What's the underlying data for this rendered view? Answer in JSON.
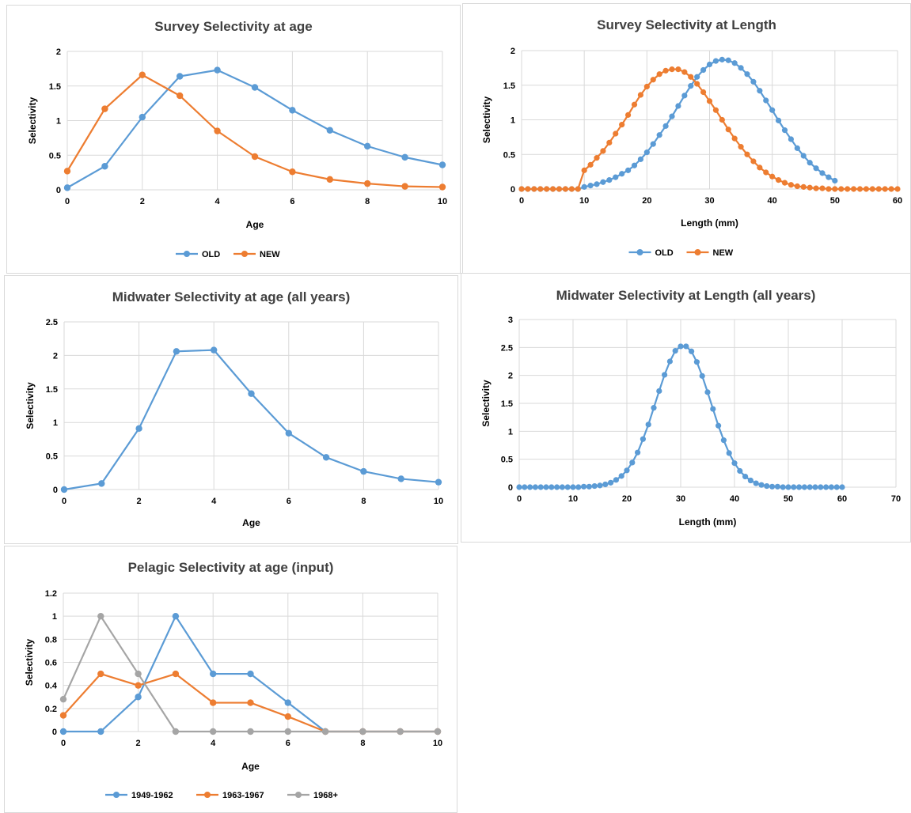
{
  "chart_data": [
    {
      "id": "survey-age",
      "type": "line",
      "title": "Survey Selectivity at age",
      "xlabel": "Age",
      "ylabel": "Selectivity",
      "xlim": [
        0,
        10
      ],
      "ylim": [
        0,
        2
      ],
      "xticks": [
        0,
        2,
        4,
        6,
        8,
        10
      ],
      "yticks": [
        0,
        0.5,
        1,
        1.5,
        2
      ],
      "x": [
        0,
        1,
        2,
        3,
        4,
        5,
        6,
        7,
        8,
        9,
        10
      ],
      "legend": "bottom",
      "series": [
        {
          "name": "OLD",
          "color": "#5B9BD5",
          "values": [
            0.03,
            0.34,
            1.05,
            1.64,
            1.73,
            1.48,
            1.15,
            0.86,
            0.63,
            0.47,
            0.36
          ]
        },
        {
          "name": "NEW",
          "color": "#ED7D31",
          "values": [
            0.27,
            1.17,
            1.66,
            1.36,
            0.85,
            0.48,
            0.26,
            0.15,
            0.09,
            0.05,
            0.04
          ]
        }
      ]
    },
    {
      "id": "survey-length",
      "type": "line",
      "title": "Survey Selectivity at Length",
      "xlabel": "Length (mm)",
      "ylabel": "Selectivity",
      "xlim": [
        0,
        60
      ],
      "ylim": [
        0,
        2
      ],
      "xticks": [
        0,
        10,
        20,
        30,
        40,
        50,
        60
      ],
      "yticks": [
        0,
        0.5,
        1,
        1.5,
        2
      ],
      "legend": "bottom",
      "series": [
        {
          "name": "OLD",
          "color": "#5B9BD5",
          "x": [
            0,
            1,
            2,
            3,
            4,
            5,
            6,
            7,
            8,
            9,
            10,
            11,
            12,
            13,
            14,
            15,
            16,
            17,
            18,
            19,
            20,
            21,
            22,
            23,
            24,
            25,
            26,
            27,
            28,
            29,
            30,
            31,
            32,
            33,
            34,
            35,
            36,
            37,
            38,
            39,
            40,
            41,
            42,
            43,
            44,
            45,
            46,
            47,
            48,
            49,
            50
          ],
          "values": [
            0,
            0,
            0,
            0,
            0,
            0,
            0,
            0,
            0,
            0,
            0.03,
            0.05,
            0.07,
            0.1,
            0.13,
            0.17,
            0.22,
            0.27,
            0.34,
            0.43,
            0.53,
            0.65,
            0.78,
            0.91,
            1.05,
            1.2,
            1.35,
            1.49,
            1.62,
            1.72,
            1.8,
            1.85,
            1.87,
            1.86,
            1.82,
            1.75,
            1.66,
            1.55,
            1.42,
            1.28,
            1.14,
            0.99,
            0.85,
            0.72,
            0.59,
            0.48,
            0.38,
            0.3,
            0.23,
            0.17,
            0.12
          ]
        },
        {
          "name": "NEW",
          "color": "#ED7D31",
          "x": [
            0,
            1,
            2,
            3,
            4,
            5,
            6,
            7,
            8,
            9,
            10,
            11,
            12,
            13,
            14,
            15,
            16,
            17,
            18,
            19,
            20,
            21,
            22,
            23,
            24,
            25,
            26,
            27,
            28,
            29,
            30,
            31,
            32,
            33,
            34,
            35,
            36,
            37,
            38,
            39,
            40,
            41,
            42,
            43,
            44,
            45,
            46,
            47,
            48,
            49,
            50,
            51,
            52,
            53,
            54,
            55,
            56,
            57,
            58,
            59,
            60
          ],
          "values": [
            0,
            0,
            0,
            0,
            0,
            0,
            0,
            0,
            0,
            0,
            0.27,
            0.35,
            0.45,
            0.55,
            0.67,
            0.8,
            0.93,
            1.07,
            1.22,
            1.36,
            1.48,
            1.58,
            1.66,
            1.71,
            1.73,
            1.73,
            1.69,
            1.62,
            1.52,
            1.4,
            1.27,
            1.14,
            1.0,
            0.86,
            0.73,
            0.61,
            0.5,
            0.4,
            0.31,
            0.24,
            0.18,
            0.13,
            0.09,
            0.06,
            0.04,
            0.03,
            0.02,
            0.01,
            0.01,
            0,
            0,
            0,
            0,
            0,
            0,
            0,
            0,
            0,
            0,
            0,
            0
          ]
        }
      ]
    },
    {
      "id": "midwater-age",
      "type": "line",
      "title": "Midwater Selectivity at age (all years)",
      "xlabel": "Age",
      "ylabel": "Selectivity",
      "xlim": [
        0,
        10
      ],
      "ylim": [
        0,
        2.5
      ],
      "xticks": [
        0,
        2,
        4,
        6,
        8,
        10
      ],
      "yticks": [
        0,
        0.5,
        1,
        1.5,
        2,
        2.5
      ],
      "x": [
        0,
        1,
        2,
        3,
        4,
        5,
        6,
        7,
        8,
        9,
        10
      ],
      "series": [
        {
          "color": "#5B9BD5",
          "values": [
            0,
            0.09,
            0.91,
            2.06,
            2.08,
            1.43,
            0.84,
            0.48,
            0.27,
            0.16,
            0.11
          ]
        }
      ]
    },
    {
      "id": "midwater-length",
      "type": "line",
      "title": "Midwater Selectivity at Length (all years)",
      "xlabel": "Length (mm)",
      "ylabel": "Selectivity",
      "xlim": [
        0,
        70
      ],
      "ylim": [
        0,
        3
      ],
      "xticks": [
        0,
        10,
        20,
        30,
        40,
        50,
        60,
        70
      ],
      "yticks": [
        0,
        0.5,
        1,
        1.5,
        2,
        2.5,
        3
      ],
      "series": [
        {
          "color": "#5B9BD5",
          "x": [
            0,
            1,
            2,
            3,
            4,
            5,
            6,
            7,
            8,
            9,
            10,
            11,
            12,
            13,
            14,
            15,
            16,
            17,
            18,
            19,
            20,
            21,
            22,
            23,
            24,
            25,
            26,
            27,
            28,
            29,
            30,
            31,
            32,
            33,
            34,
            35,
            36,
            37,
            38,
            39,
            40,
            41,
            42,
            43,
            44,
            45,
            46,
            47,
            48,
            49,
            50,
            51,
            52,
            53,
            54,
            55,
            56,
            57,
            58,
            59,
            60
          ],
          "values": [
            0,
            0,
            0,
            0,
            0,
            0,
            0,
            0,
            0,
            0,
            0,
            0,
            0.01,
            0.01,
            0.02,
            0.03,
            0.05,
            0.08,
            0.13,
            0.2,
            0.3,
            0.44,
            0.62,
            0.86,
            1.12,
            1.42,
            1.72,
            2.01,
            2.25,
            2.44,
            2.52,
            2.52,
            2.43,
            2.24,
            1.99,
            1.7,
            1.4,
            1.1,
            0.84,
            0.61,
            0.43,
            0.29,
            0.19,
            0.12,
            0.07,
            0.04,
            0.02,
            0.01,
            0.01,
            0,
            0,
            0,
            0,
            0,
            0,
            0,
            0,
            0,
            0,
            0,
            0
          ]
        }
      ]
    },
    {
      "id": "pelagic-age",
      "type": "line",
      "title": "Pelagic Selectivity at age (input)",
      "xlabel": "Age",
      "ylabel": "Selectivity",
      "xlim": [
        0,
        10
      ],
      "ylim": [
        0,
        1.2
      ],
      "xticks": [
        0,
        2,
        4,
        6,
        8,
        10
      ],
      "yticks": [
        0,
        0.2,
        0.4,
        0.6,
        0.8,
        1,
        1.2
      ],
      "x": [
        0,
        1,
        2,
        3,
        4,
        5,
        6,
        7,
        8,
        9,
        10
      ],
      "legend": "bottom",
      "series": [
        {
          "name": "1949-1962",
          "color": "#5B9BD5",
          "values": [
            0,
            0,
            0.3,
            1,
            0.5,
            0.5,
            0.25,
            0,
            0,
            0,
            0
          ]
        },
        {
          "name": "1963-1967",
          "color": "#ED7D31",
          "values": [
            0.14,
            0.5,
            0.4,
            0.5,
            0.25,
            0.25,
            0.13,
            0,
            0,
            0,
            0
          ]
        },
        {
          "name": "1968+",
          "color": "#A5A5A5",
          "values": [
            0.28,
            1,
            0.5,
            0,
            0,
            0,
            0,
            0,
            0,
            0,
            0
          ]
        }
      ]
    }
  ]
}
